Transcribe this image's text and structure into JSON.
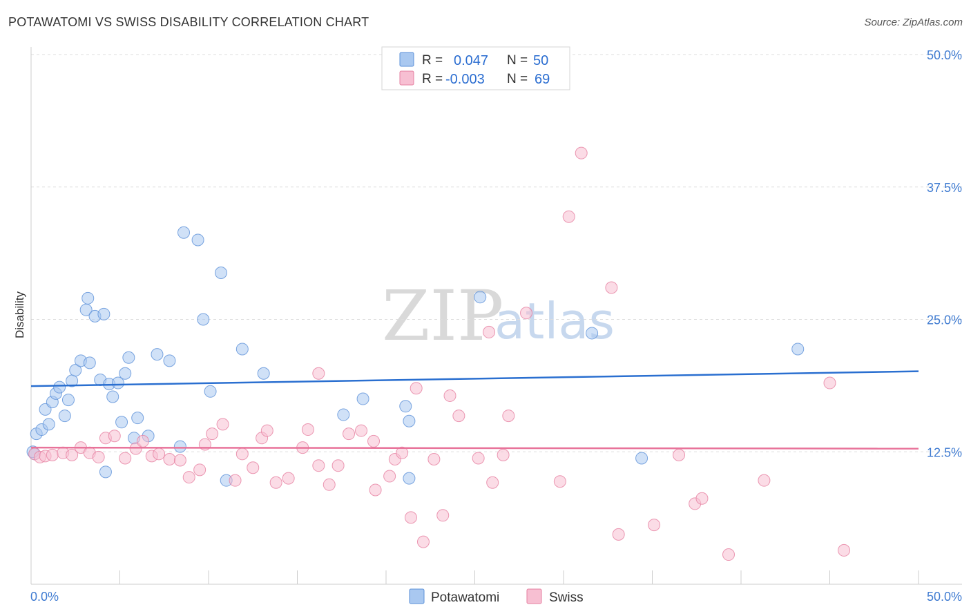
{
  "header": {
    "title": "POTAWATOMI VS SWISS DISABILITY CORRELATION CHART",
    "source": "Source: ZipAtlas.com"
  },
  "watermark": {
    "zip": "ZIP",
    "atlas": "atlas"
  },
  "legend": {
    "r_label": "R =",
    "n_label": "N =",
    "series": [
      {
        "name": "Potawatomi",
        "r": "0.047",
        "n": "50",
        "fill": "#a9c8f0",
        "stroke": "#5b90d8"
      },
      {
        "name": "Swiss",
        "r": "-0.003",
        "n": "69",
        "fill": "#f7bfd2",
        "stroke": "#e67fa0"
      }
    ]
  },
  "chart_data": {
    "type": "scatter",
    "title": "POTAWATOMI VS SWISS DISABILITY CORRELATION CHART",
    "xlabel": "",
    "ylabel": "Disability",
    "xlim": [
      0,
      50
    ],
    "ylim": [
      0,
      50
    ],
    "x_tick_labels": [
      "0.0%",
      "50.0%"
    ],
    "y_ticks": [
      {
        "value": 12.5,
        "label": "12.5%"
      },
      {
        "value": 25.0,
        "label": "25.0%"
      },
      {
        "value": 37.5,
        "label": "37.5%"
      },
      {
        "value": 50.0,
        "label": "50.0%"
      }
    ],
    "grid": "horizontal dashed",
    "series": [
      {
        "name": "Potawatomi",
        "color": "#5b90d8",
        "fill": "#a9c8f0",
        "trend": {
          "y_at_x0": 18.7,
          "y_at_x50": 20.1,
          "color": "#2a6fd0"
        },
        "points": [
          [
            0.2,
            12.3
          ],
          [
            0.3,
            14.2
          ],
          [
            0.6,
            14.6
          ],
          [
            0.8,
            16.5
          ],
          [
            1.0,
            15.1
          ],
          [
            1.2,
            17.2
          ],
          [
            1.4,
            18.0
          ],
          [
            1.6,
            18.6
          ],
          [
            1.9,
            15.9
          ],
          [
            2.1,
            17.4
          ],
          [
            2.3,
            19.2
          ],
          [
            2.5,
            20.2
          ],
          [
            2.8,
            21.1
          ],
          [
            3.1,
            25.9
          ],
          [
            3.2,
            27.0
          ],
          [
            3.3,
            20.9
          ],
          [
            3.6,
            25.3
          ],
          [
            3.9,
            19.3
          ],
          [
            4.1,
            25.5
          ],
          [
            4.2,
            10.6
          ],
          [
            4.4,
            18.9
          ],
          [
            4.6,
            17.7
          ],
          [
            4.9,
            19.0
          ],
          [
            5.1,
            15.3
          ],
          [
            5.3,
            19.9
          ],
          [
            5.5,
            21.4
          ],
          [
            5.8,
            13.8
          ],
          [
            6.0,
            15.7
          ],
          [
            6.6,
            14.0
          ],
          [
            7.1,
            21.7
          ],
          [
            7.8,
            21.1
          ],
          [
            8.4,
            13.0
          ],
          [
            8.6,
            33.2
          ],
          [
            9.4,
            32.5
          ],
          [
            9.7,
            25.0
          ],
          [
            10.1,
            18.2
          ],
          [
            10.7,
            29.4
          ],
          [
            11.0,
            9.8
          ],
          [
            11.9,
            22.2
          ],
          [
            13.1,
            19.9
          ],
          [
            17.6,
            16.0
          ],
          [
            18.7,
            17.5
          ],
          [
            21.1,
            16.8
          ],
          [
            21.3,
            10.0
          ],
          [
            21.3,
            15.4
          ],
          [
            25.3,
            27.1
          ],
          [
            31.6,
            23.7
          ],
          [
            34.4,
            11.9
          ],
          [
            43.2,
            22.2
          ],
          [
            0.1,
            12.5
          ]
        ]
      },
      {
        "name": "Swiss",
        "color": "#e67fa0",
        "fill": "#f7bfd2",
        "trend": {
          "y_at_x0": 12.9,
          "y_at_x50": 12.8,
          "color": "#e8739a"
        },
        "points": [
          [
            0.2,
            12.3
          ],
          [
            0.5,
            12.0
          ],
          [
            0.8,
            12.1
          ],
          [
            1.2,
            12.2
          ],
          [
            1.8,
            12.4
          ],
          [
            2.3,
            12.2
          ],
          [
            2.8,
            12.9
          ],
          [
            3.3,
            12.4
          ],
          [
            3.8,
            12.0
          ],
          [
            4.2,
            13.8
          ],
          [
            4.7,
            14.0
          ],
          [
            5.3,
            11.9
          ],
          [
            5.9,
            12.8
          ],
          [
            6.3,
            13.5
          ],
          [
            6.8,
            12.1
          ],
          [
            7.2,
            12.3
          ],
          [
            7.8,
            11.8
          ],
          [
            8.4,
            11.7
          ],
          [
            8.9,
            10.1
          ],
          [
            9.5,
            10.8
          ],
          [
            9.8,
            13.2
          ],
          [
            10.2,
            14.2
          ],
          [
            10.8,
            15.1
          ],
          [
            11.5,
            9.8
          ],
          [
            11.9,
            12.3
          ],
          [
            12.5,
            11.0
          ],
          [
            13.0,
            13.8
          ],
          [
            13.3,
            14.5
          ],
          [
            13.8,
            9.6
          ],
          [
            14.5,
            10.0
          ],
          [
            15.3,
            12.9
          ],
          [
            15.6,
            14.6
          ],
          [
            16.2,
            11.2
          ],
          [
            16.2,
            19.9
          ],
          [
            16.8,
            9.4
          ],
          [
            17.3,
            11.2
          ],
          [
            17.9,
            14.2
          ],
          [
            18.6,
            14.5
          ],
          [
            19.3,
            13.5
          ],
          [
            19.4,
            8.9
          ],
          [
            20.2,
            10.2
          ],
          [
            20.5,
            11.8
          ],
          [
            20.9,
            12.4
          ],
          [
            21.4,
            6.3
          ],
          [
            21.7,
            18.5
          ],
          [
            22.1,
            4.0
          ],
          [
            22.7,
            11.8
          ],
          [
            23.2,
            6.5
          ],
          [
            23.6,
            17.8
          ],
          [
            24.1,
            15.9
          ],
          [
            25.2,
            11.9
          ],
          [
            25.8,
            23.8
          ],
          [
            26.0,
            9.6
          ],
          [
            26.6,
            12.2
          ],
          [
            26.9,
            15.9
          ],
          [
            27.9,
            25.6
          ],
          [
            29.8,
            9.7
          ],
          [
            30.3,
            34.7
          ],
          [
            31.0,
            40.7
          ],
          [
            32.7,
            28.0
          ],
          [
            33.1,
            4.7
          ],
          [
            35.1,
            5.6
          ],
          [
            36.5,
            12.2
          ],
          [
            37.4,
            7.6
          ],
          [
            37.8,
            8.1
          ],
          [
            39.3,
            2.8
          ],
          [
            41.3,
            9.8
          ],
          [
            45.0,
            19.0
          ],
          [
            45.8,
            3.2
          ]
        ]
      }
    ]
  }
}
